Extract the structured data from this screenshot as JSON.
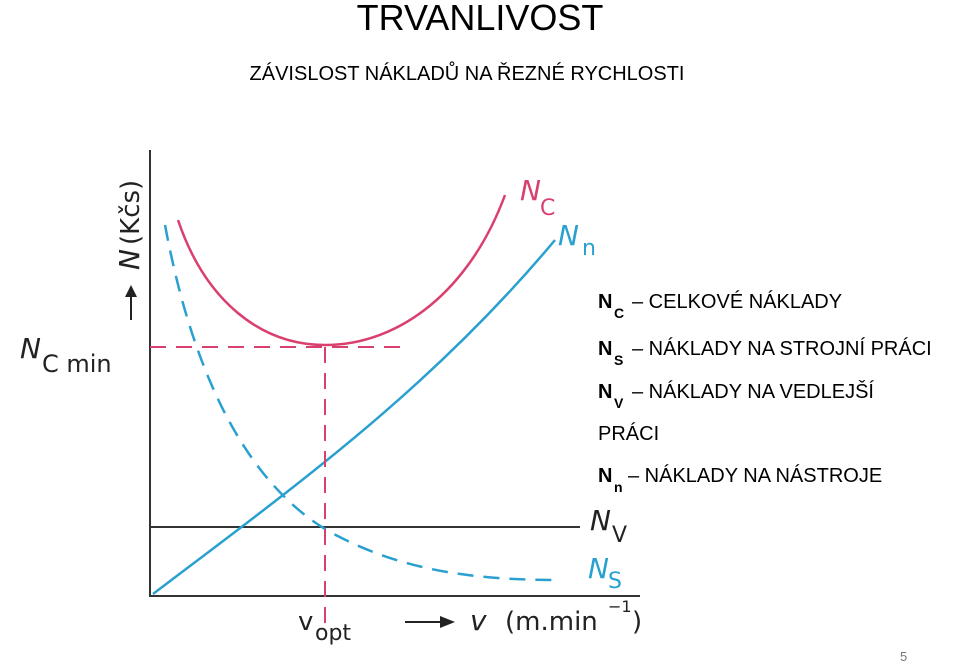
{
  "header": {
    "title": "TRVANLIVOST",
    "subtitle": "ZÁVISLOST NÁKLADŮ NA ŘEZNÉ RYCHLOSTI"
  },
  "diagram": {
    "y_axis": {
      "symbol": "N",
      "unit": "(Kčs)"
    },
    "x_axis": {
      "symbol": "v",
      "unit": "(m.min",
      "exponent": "−1",
      "unit_close": ")"
    },
    "optimum": {
      "symbol": "v",
      "subscript": "opt"
    },
    "minimum": {
      "symbol": "N",
      "subscript": "C min"
    },
    "curve_labels": [
      {
        "symbol": "N",
        "subscript": "C"
      },
      {
        "symbol": "N",
        "subscript": "n"
      },
      {
        "symbol": "N",
        "subscript": "V"
      },
      {
        "symbol": "N",
        "subscript": "S"
      }
    ]
  },
  "legend": [
    {
      "symbol": "N",
      "subscript": "C",
      "text": "– CELKOVÉ NÁKLADY"
    },
    {
      "symbol": "N",
      "subscript": "S",
      "text": "– NÁKLADY NA STROJNÍ PRÁCI"
    },
    {
      "symbol": "N",
      "subscript": "V",
      "text": "– NÁKLADY NA VEDLEJŠÍ",
      "text_continued": "PRÁCI"
    },
    {
      "symbol": "N",
      "subscript": "n",
      "text": "– NÁKLADY NA NÁSTROJE"
    }
  ],
  "footer": {
    "page_number": "5"
  }
}
